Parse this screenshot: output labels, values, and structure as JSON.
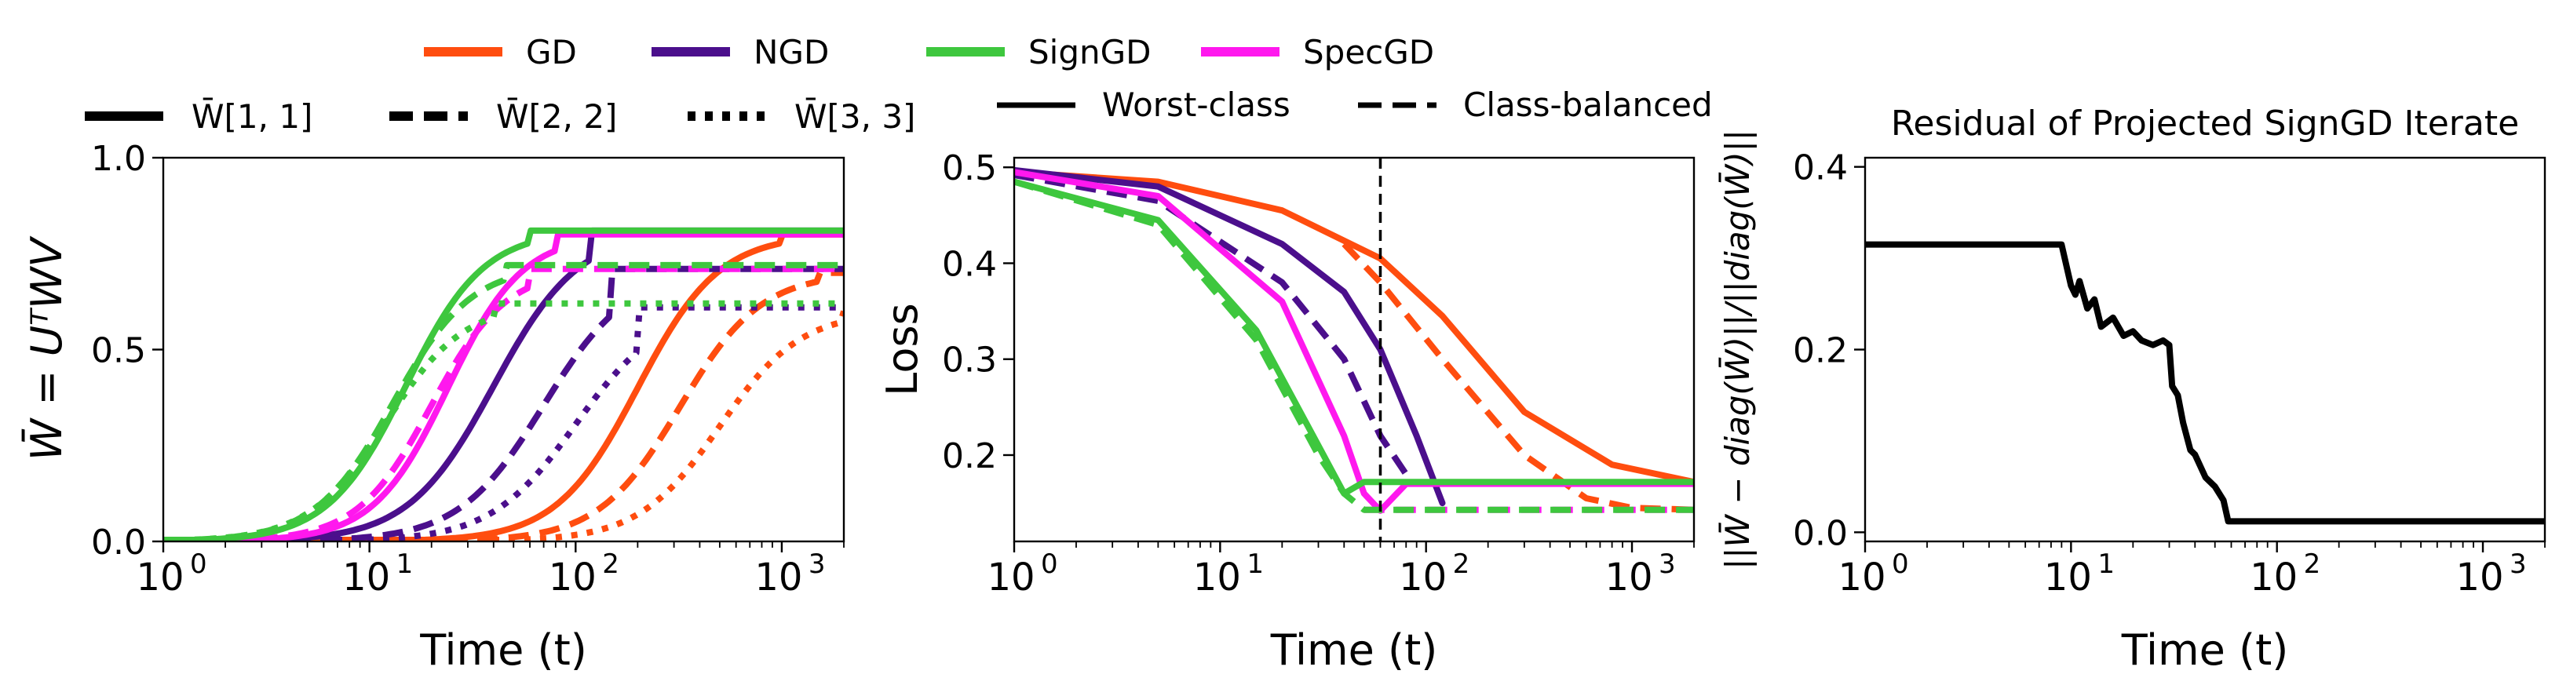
{
  "colors": {
    "gd": "#ff4d0f",
    "ngd": "#4b0f8c",
    "signgd": "#3ec73e",
    "specgd": "#ff18ee",
    "black": "#000000"
  },
  "legend": {
    "methods": [
      {
        "label": "GD",
        "color": "#ff4d0f"
      },
      {
        "label": "NGD",
        "color": "#4b0f8c"
      },
      {
        "label": "SignGD",
        "color": "#3ec73e"
      },
      {
        "label": "SpecGD",
        "color": "#ff18ee"
      }
    ],
    "entries": [
      {
        "label": "W̄[1, 1]",
        "style": "solid"
      },
      {
        "label": "W̄[2, 2]",
        "style": "dashed"
      },
      {
        "label": "W̄[3, 3]",
        "style": "dotted"
      }
    ],
    "loss_types": [
      {
        "label": "Worst-class",
        "style": "solid"
      },
      {
        "label": "Class-balanced",
        "style": "dashed"
      }
    ]
  },
  "chart_data": [
    {
      "type": "line",
      "title": "",
      "xlabel": "Time (t)",
      "ylabel": "W̄ = UᵀWV",
      "xscale": "log",
      "xlim": [
        1,
        2000
      ],
      "ylim": [
        0.0,
        1.0
      ],
      "yticks": [
        "0.0",
        "0.5",
        "1.0"
      ],
      "series": [
        {
          "name": "GD W[1,1]",
          "color": "#ff4d0f",
          "style": "solid",
          "sigmoid": {
            "final": 0.8,
            "t50": 200,
            "k": 2.2,
            "tcap": 1000
          }
        },
        {
          "name": "GD W[2,2]",
          "color": "#ff4d0f",
          "style": "dashed",
          "sigmoid": {
            "final": 0.7,
            "t50": 320,
            "k": 2.2,
            "tcap": 1500
          }
        },
        {
          "name": "GD W[3,3]",
          "color": "#ff4d0f",
          "style": "dotted",
          "sigmoid": {
            "final": 0.6,
            "t50": 500,
            "k": 2.2,
            "tcap": 2000
          }
        },
        {
          "name": "NGD W[1,1]",
          "color": "#4b0f8c",
          "style": "solid",
          "sigmoid": {
            "final": 0.81,
            "t50": 40,
            "k": 2.1,
            "tcap": 120
          }
        },
        {
          "name": "NGD W[2,2]",
          "color": "#4b0f8c",
          "style": "dashed",
          "sigmoid": {
            "final": 0.71,
            "t50": 70,
            "k": 2.1,
            "tcap": 150
          }
        },
        {
          "name": "NGD W[3,3]",
          "color": "#4b0f8c",
          "style": "dotted",
          "sigmoid": {
            "final": 0.61,
            "t50": 100,
            "k": 2.1,
            "tcap": 200
          }
        },
        {
          "name": "SpecGD W[1,1]",
          "color": "#ff18ee",
          "style": "solid",
          "sigmoid": {
            "final": 0.8,
            "t50": 24,
            "k": 2.4,
            "tcap": 80
          }
        },
        {
          "name": "SpecGD W[2,2]",
          "color": "#ff18ee",
          "style": "dashed",
          "sigmoid": {
            "final": 0.71,
            "t50": 20,
            "k": 2.4,
            "tcap": 60
          }
        },
        {
          "name": "SignGD W[1,1]",
          "color": "#3ec73e",
          "style": "solid",
          "sigmoid": {
            "final": 0.81,
            "t50": 15,
            "k": 2.3,
            "tcap": 60
          }
        },
        {
          "name": "SignGD W[2,2]",
          "color": "#3ec73e",
          "style": "dashed",
          "sigmoid": {
            "final": 0.72,
            "t50": 13,
            "k": 2.3,
            "tcap": 45
          }
        },
        {
          "name": "SignGD W[3,3]",
          "color": "#3ec73e",
          "style": "dotted",
          "sigmoid": {
            "final": 0.62,
            "t50": 12,
            "k": 2.3,
            "tcap": 40
          }
        }
      ]
    },
    {
      "type": "line",
      "title": "",
      "xlabel": "Time (t)",
      "ylabel": "Loss",
      "xscale": "log",
      "xlim": [
        1,
        2000
      ],
      "ylim": [
        0.11,
        0.51
      ],
      "yticks": [
        "0.2",
        "0.3",
        "0.4",
        "0.5"
      ],
      "vline_x": 60,
      "series": [
        {
          "name": "GD Worst-class",
          "color": "#ff4d0f",
          "style": "solid",
          "x": [
            1,
            5,
            20,
            60,
            120,
            300,
            800,
            2000
          ],
          "y": [
            0.495,
            0.485,
            0.455,
            0.405,
            0.345,
            0.245,
            0.19,
            0.172
          ]
        },
        {
          "name": "GD Class-balanced",
          "color": "#ff4d0f",
          "style": "dashed",
          "x": [
            40,
            60,
            120,
            300,
            600,
            1000,
            2000
          ],
          "y": [
            0.42,
            0.38,
            0.3,
            0.2,
            0.155,
            0.145,
            0.143
          ]
        },
        {
          "name": "NGD Worst-class",
          "color": "#4b0f8c",
          "style": "solid",
          "x": [
            1,
            5,
            20,
            40,
            60,
            90,
            120
          ],
          "y": [
            0.497,
            0.48,
            0.42,
            0.37,
            0.31,
            0.22,
            0.15
          ]
        },
        {
          "name": "NGD Class-balanced",
          "color": "#4b0f8c",
          "style": "dashed",
          "x": [
            1,
            5,
            20,
            40,
            60,
            80
          ],
          "y": [
            0.492,
            0.465,
            0.38,
            0.3,
            0.22,
            0.18
          ]
        },
        {
          "name": "SpecGD Worst-class",
          "color": "#ff18ee",
          "style": "solid",
          "x": [
            1,
            5,
            20,
            40,
            50,
            60,
            80,
            2000
          ],
          "y": [
            0.495,
            0.47,
            0.36,
            0.22,
            0.16,
            0.142,
            0.17,
            0.17
          ]
        },
        {
          "name": "SpecGD Class-balanced",
          "color": "#ff18ee",
          "style": "dashed",
          "x": [
            50,
            60,
            2000
          ],
          "y": [
            0.143,
            0.143,
            0.143
          ]
        },
        {
          "name": "SignGD Worst-class",
          "color": "#3ec73e",
          "style": "solid",
          "x": [
            1,
            5,
            15,
            30,
            40,
            50,
            2000
          ],
          "y": [
            0.485,
            0.445,
            0.33,
            0.21,
            0.16,
            0.172,
            0.172
          ]
        },
        {
          "name": "SignGD Class-balanced",
          "color": "#3ec73e",
          "style": "dashed",
          "x": [
            1,
            5,
            15,
            30,
            40,
            50,
            60,
            2000
          ],
          "y": [
            0.485,
            0.44,
            0.32,
            0.2,
            0.16,
            0.143,
            0.143,
            0.143
          ]
        }
      ]
    },
    {
      "type": "line",
      "title": "Residual of Projected SignGD Iterate",
      "xlabel": "Time (t)",
      "ylabel": "||W̄ − diag(W̄)||/||diag(W̄)||",
      "xscale": "log",
      "xlim": [
        1,
        2000
      ],
      "ylim": [
        -0.01,
        0.41
      ],
      "yticks": [
        "0.0",
        "0.2",
        "0.4"
      ],
      "series": [
        {
          "name": "Residual",
          "color": "#000000",
          "style": "solid",
          "x": [
            1,
            9,
            10,
            10.5,
            11,
            12,
            13,
            14,
            16,
            18,
            20,
            22,
            25,
            28,
            30,
            31,
            33,
            35,
            38,
            40,
            45,
            50,
            55,
            58,
            2000
          ],
          "y": [
            0.315,
            0.315,
            0.27,
            0.26,
            0.275,
            0.245,
            0.255,
            0.225,
            0.235,
            0.215,
            0.22,
            0.21,
            0.205,
            0.21,
            0.205,
            0.16,
            0.15,
            0.12,
            0.09,
            0.085,
            0.06,
            0.05,
            0.035,
            0.012,
            0.012
          ]
        }
      ]
    }
  ]
}
